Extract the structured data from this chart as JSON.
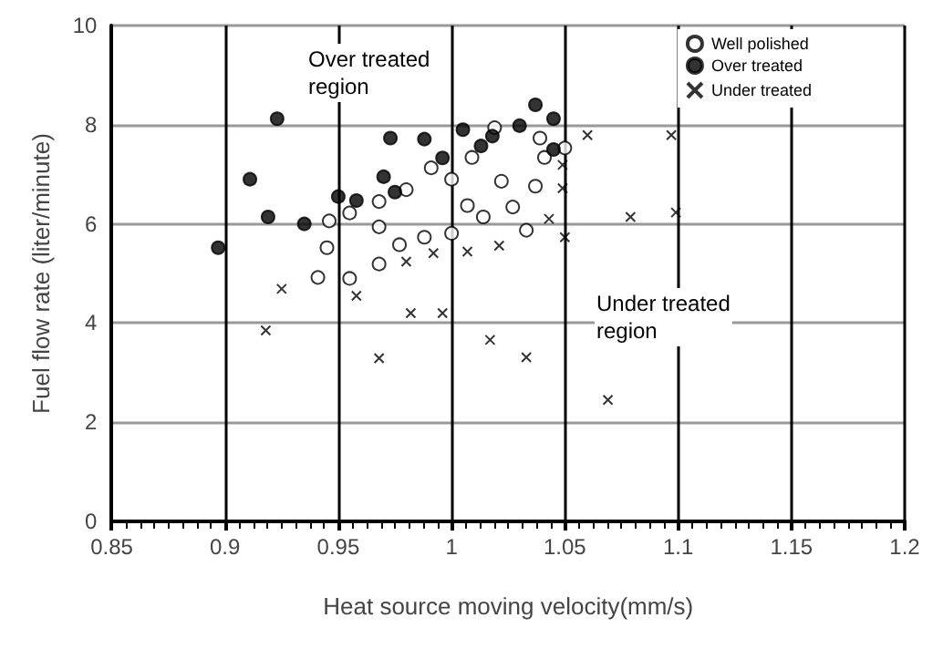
{
  "chart_data": {
    "type": "scatter",
    "xlabel": "Heat source moving velocity(mm/s)",
    "ylabel": "Fuel flow rate (liter/minute)",
    "xlim": [
      0.85,
      1.2
    ],
    "xticks": [
      0.85,
      0.9,
      0.95,
      1,
      1.05,
      1.1,
      1.15,
      1.2
    ],
    "ylim": [
      0,
      10
    ],
    "yticks": [
      0,
      2,
      4,
      6,
      8,
      10
    ],
    "grid": true,
    "legend": "top right",
    "annotations": [
      "Over treated region",
      "Under treated region"
    ],
    "series": [
      {
        "name": "Well polished",
        "color": "#ffffff",
        "marker": "circle",
        "x": [
          0.946,
          0.955,
          0.968,
          0.98,
          0.968,
          0.945,
          0.977,
          0.988,
          0.941,
          0.955,
          0.968,
          1.0,
          0.991,
          1.0,
          1.009,
          1.007,
          1.014,
          1.022,
          1.019,
          1.027,
          1.033,
          1.039,
          1.041,
          1.05,
          1.037
        ],
        "values": [
          6.06,
          6.22,
          6.45,
          6.69,
          5.94,
          5.52,
          5.58,
          5.73,
          4.92,
          4.9,
          5.19,
          5.81,
          7.13,
          6.9,
          7.34,
          6.37,
          6.14,
          6.86,
          7.94,
          6.34,
          5.87,
          7.73,
          7.34,
          7.53,
          6.76
        ]
      },
      {
        "name": "Over treated",
        "color": "#000000",
        "marker": "circle",
        "x": [
          0.923,
          0.973,
          0.988,
          1.005,
          0.911,
          0.919,
          0.935,
          0.95,
          0.958,
          0.97,
          0.975,
          0.996,
          1.013,
          1.018,
          0.897,
          1.03,
          1.037,
          1.045,
          1.045
        ],
        "values": [
          8.12,
          7.73,
          7.71,
          7.9,
          6.9,
          6.14,
          6.0,
          6.55,
          6.47,
          6.95,
          6.64,
          7.33,
          7.57,
          7.77,
          5.52,
          7.98,
          8.4,
          8.12,
          7.5
        ]
      },
      {
        "name": "Under treated",
        "color": "#000000",
        "marker": "cross",
        "x": [
          0.925,
          0.918,
          0.958,
          0.98,
          0.992,
          1.007,
          0.982,
          0.996,
          0.968,
          1.017,
          1.033,
          1.021,
          1.06,
          1.097,
          1.049,
          1.049,
          1.099,
          1.079,
          1.043,
          1.05,
          1.069
        ],
        "values": [
          4.69,
          3.85,
          4.55,
          5.24,
          5.41,
          5.44,
          4.2,
          4.2,
          3.29,
          3.66,
          3.31,
          5.56,
          7.79,
          7.79,
          7.19,
          6.72,
          6.23,
          6.14,
          6.1,
          5.73,
          2.45
        ]
      }
    ]
  }
}
